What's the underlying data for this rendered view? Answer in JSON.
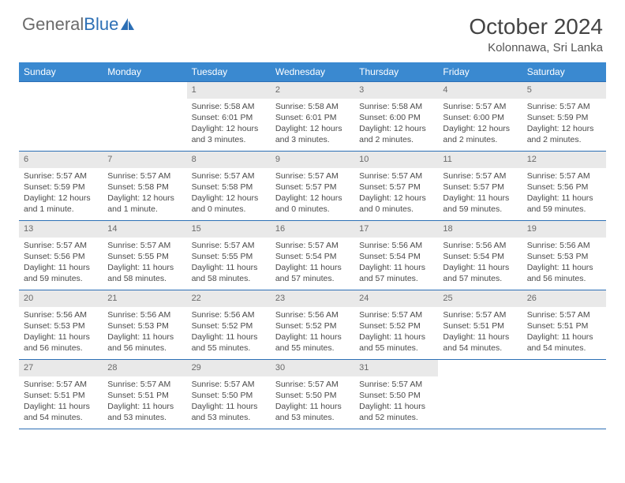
{
  "brand": {
    "part1": "General",
    "part2": "Blue"
  },
  "title": {
    "month": "October 2024",
    "location": "Kolonnawa, Sri Lanka"
  },
  "colors": {
    "header_bg": "#3a89d0",
    "border": "#2c6fb5",
    "daynum_bg": "#e9e9e9",
    "text": "#4a4a4a",
    "logo_gray": "#6b6b6b",
    "logo_blue": "#2c6fb5"
  },
  "days_of_week": [
    "Sunday",
    "Monday",
    "Tuesday",
    "Wednesday",
    "Thursday",
    "Friday",
    "Saturday"
  ],
  "weeks": [
    [
      {
        "num": "",
        "sunrise": "",
        "sunset": "",
        "daylight": ""
      },
      {
        "num": "",
        "sunrise": "",
        "sunset": "",
        "daylight": ""
      },
      {
        "num": "1",
        "sunrise": "Sunrise: 5:58 AM",
        "sunset": "Sunset: 6:01 PM",
        "daylight": "Daylight: 12 hours and 3 minutes."
      },
      {
        "num": "2",
        "sunrise": "Sunrise: 5:58 AM",
        "sunset": "Sunset: 6:01 PM",
        "daylight": "Daylight: 12 hours and 3 minutes."
      },
      {
        "num": "3",
        "sunrise": "Sunrise: 5:58 AM",
        "sunset": "Sunset: 6:00 PM",
        "daylight": "Daylight: 12 hours and 2 minutes."
      },
      {
        "num": "4",
        "sunrise": "Sunrise: 5:57 AM",
        "sunset": "Sunset: 6:00 PM",
        "daylight": "Daylight: 12 hours and 2 minutes."
      },
      {
        "num": "5",
        "sunrise": "Sunrise: 5:57 AM",
        "sunset": "Sunset: 5:59 PM",
        "daylight": "Daylight: 12 hours and 2 minutes."
      }
    ],
    [
      {
        "num": "6",
        "sunrise": "Sunrise: 5:57 AM",
        "sunset": "Sunset: 5:59 PM",
        "daylight": "Daylight: 12 hours and 1 minute."
      },
      {
        "num": "7",
        "sunrise": "Sunrise: 5:57 AM",
        "sunset": "Sunset: 5:58 PM",
        "daylight": "Daylight: 12 hours and 1 minute."
      },
      {
        "num": "8",
        "sunrise": "Sunrise: 5:57 AM",
        "sunset": "Sunset: 5:58 PM",
        "daylight": "Daylight: 12 hours and 0 minutes."
      },
      {
        "num": "9",
        "sunrise": "Sunrise: 5:57 AM",
        "sunset": "Sunset: 5:57 PM",
        "daylight": "Daylight: 12 hours and 0 minutes."
      },
      {
        "num": "10",
        "sunrise": "Sunrise: 5:57 AM",
        "sunset": "Sunset: 5:57 PM",
        "daylight": "Daylight: 12 hours and 0 minutes."
      },
      {
        "num": "11",
        "sunrise": "Sunrise: 5:57 AM",
        "sunset": "Sunset: 5:57 PM",
        "daylight": "Daylight: 11 hours and 59 minutes."
      },
      {
        "num": "12",
        "sunrise": "Sunrise: 5:57 AM",
        "sunset": "Sunset: 5:56 PM",
        "daylight": "Daylight: 11 hours and 59 minutes."
      }
    ],
    [
      {
        "num": "13",
        "sunrise": "Sunrise: 5:57 AM",
        "sunset": "Sunset: 5:56 PM",
        "daylight": "Daylight: 11 hours and 59 minutes."
      },
      {
        "num": "14",
        "sunrise": "Sunrise: 5:57 AM",
        "sunset": "Sunset: 5:55 PM",
        "daylight": "Daylight: 11 hours and 58 minutes."
      },
      {
        "num": "15",
        "sunrise": "Sunrise: 5:57 AM",
        "sunset": "Sunset: 5:55 PM",
        "daylight": "Daylight: 11 hours and 58 minutes."
      },
      {
        "num": "16",
        "sunrise": "Sunrise: 5:57 AM",
        "sunset": "Sunset: 5:54 PM",
        "daylight": "Daylight: 11 hours and 57 minutes."
      },
      {
        "num": "17",
        "sunrise": "Sunrise: 5:56 AM",
        "sunset": "Sunset: 5:54 PM",
        "daylight": "Daylight: 11 hours and 57 minutes."
      },
      {
        "num": "18",
        "sunrise": "Sunrise: 5:56 AM",
        "sunset": "Sunset: 5:54 PM",
        "daylight": "Daylight: 11 hours and 57 minutes."
      },
      {
        "num": "19",
        "sunrise": "Sunrise: 5:56 AM",
        "sunset": "Sunset: 5:53 PM",
        "daylight": "Daylight: 11 hours and 56 minutes."
      }
    ],
    [
      {
        "num": "20",
        "sunrise": "Sunrise: 5:56 AM",
        "sunset": "Sunset: 5:53 PM",
        "daylight": "Daylight: 11 hours and 56 minutes."
      },
      {
        "num": "21",
        "sunrise": "Sunrise: 5:56 AM",
        "sunset": "Sunset: 5:53 PM",
        "daylight": "Daylight: 11 hours and 56 minutes."
      },
      {
        "num": "22",
        "sunrise": "Sunrise: 5:56 AM",
        "sunset": "Sunset: 5:52 PM",
        "daylight": "Daylight: 11 hours and 55 minutes."
      },
      {
        "num": "23",
        "sunrise": "Sunrise: 5:56 AM",
        "sunset": "Sunset: 5:52 PM",
        "daylight": "Daylight: 11 hours and 55 minutes."
      },
      {
        "num": "24",
        "sunrise": "Sunrise: 5:57 AM",
        "sunset": "Sunset: 5:52 PM",
        "daylight": "Daylight: 11 hours and 55 minutes."
      },
      {
        "num": "25",
        "sunrise": "Sunrise: 5:57 AM",
        "sunset": "Sunset: 5:51 PM",
        "daylight": "Daylight: 11 hours and 54 minutes."
      },
      {
        "num": "26",
        "sunrise": "Sunrise: 5:57 AM",
        "sunset": "Sunset: 5:51 PM",
        "daylight": "Daylight: 11 hours and 54 minutes."
      }
    ],
    [
      {
        "num": "27",
        "sunrise": "Sunrise: 5:57 AM",
        "sunset": "Sunset: 5:51 PM",
        "daylight": "Daylight: 11 hours and 54 minutes."
      },
      {
        "num": "28",
        "sunrise": "Sunrise: 5:57 AM",
        "sunset": "Sunset: 5:51 PM",
        "daylight": "Daylight: 11 hours and 53 minutes."
      },
      {
        "num": "29",
        "sunrise": "Sunrise: 5:57 AM",
        "sunset": "Sunset: 5:50 PM",
        "daylight": "Daylight: 11 hours and 53 minutes."
      },
      {
        "num": "30",
        "sunrise": "Sunrise: 5:57 AM",
        "sunset": "Sunset: 5:50 PM",
        "daylight": "Daylight: 11 hours and 53 minutes."
      },
      {
        "num": "31",
        "sunrise": "Sunrise: 5:57 AM",
        "sunset": "Sunset: 5:50 PM",
        "daylight": "Daylight: 11 hours and 52 minutes."
      },
      {
        "num": "",
        "sunrise": "",
        "sunset": "",
        "daylight": ""
      },
      {
        "num": "",
        "sunrise": "",
        "sunset": "",
        "daylight": ""
      }
    ]
  ]
}
